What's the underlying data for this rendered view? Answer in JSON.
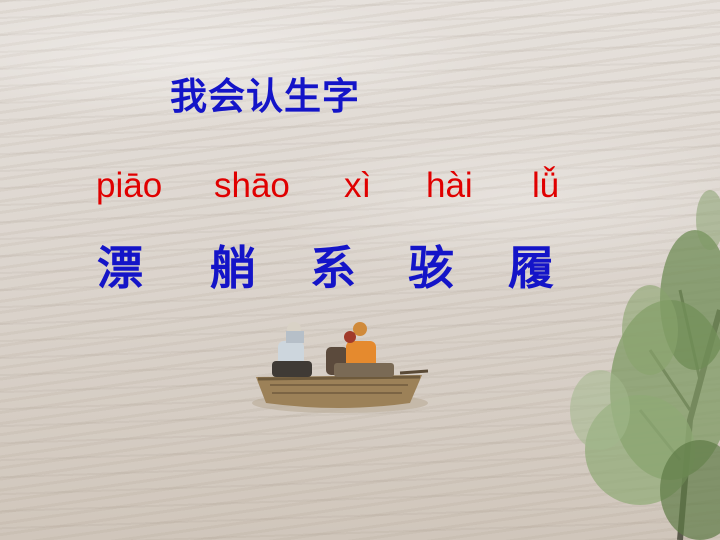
{
  "slide": {
    "title": "我会认生字",
    "words": [
      {
        "pinyin": "piāo",
        "hanzi": "漂"
      },
      {
        "pinyin": "shāo",
        "hanzi": "艄"
      },
      {
        "pinyin": "xì",
        "hanzi": "系"
      },
      {
        "pinyin": "hài",
        "hanzi": "骇"
      },
      {
        "pinyin": "lǚ",
        "hanzi": "履"
      }
    ]
  },
  "colors": {
    "title": "#1414c8",
    "pinyin": "#e00000",
    "hanzi": "#1414c8",
    "water": "#ddd6cf"
  },
  "icons": [
    "boat-photo",
    "tree-photo"
  ]
}
